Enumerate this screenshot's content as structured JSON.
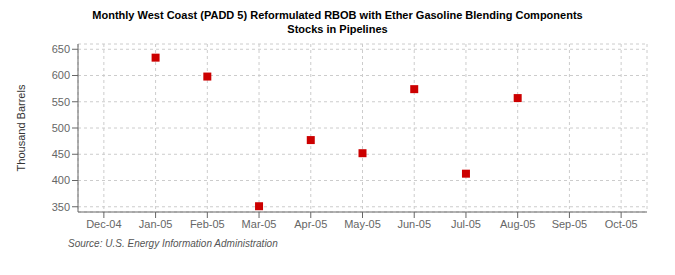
{
  "chart_data": {
    "type": "scatter",
    "title": "Monthly West Coast (PADD 5) Reformulated RBOB with Ether Gasoline Blending Components",
    "subtitle": "Stocks in Pipelines",
    "ylabel": "Thousand Barrels",
    "source": "Source: U.S. Energy Information Administration",
    "categories": [
      "Dec-04",
      "Jan-05",
      "Feb-05",
      "Mar-05",
      "Apr-05",
      "May-05",
      "Jun-05",
      "Jul-05",
      "Aug-05",
      "Sep-05",
      "Oct-05"
    ],
    "values": [
      null,
      634,
      598,
      351,
      477,
      452,
      574,
      413,
      557,
      null,
      null
    ],
    "color": "#cc0000",
    "marker": "square",
    "ylim": [
      340,
      660
    ],
    "yticks": [
      350,
      400,
      450,
      500,
      550,
      600,
      650
    ],
    "grid": true
  }
}
